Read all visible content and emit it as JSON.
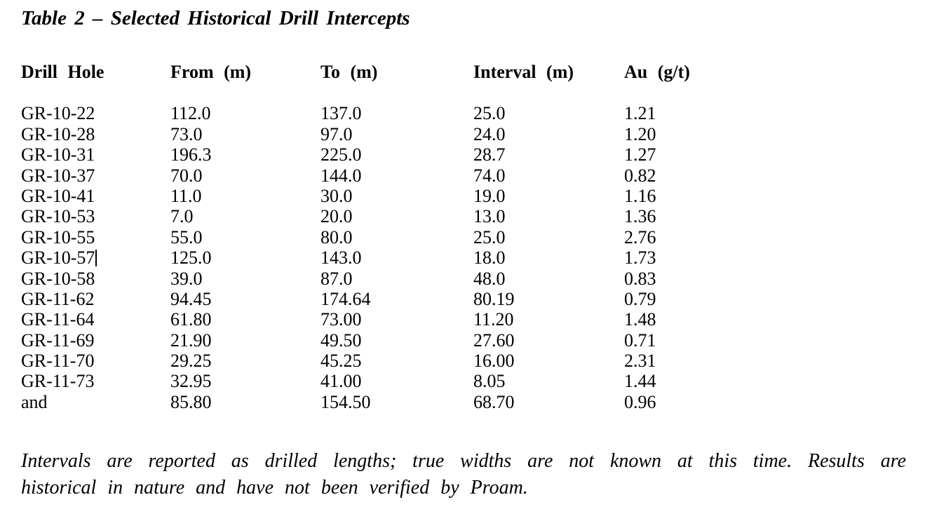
{
  "document": {
    "title": "Table 2 – Selected Historical Drill Intercepts",
    "footnote_lines": {
      "line1": "Intervals are reported as drilled lengths; true widths are not known at this time. Results are",
      "line2": "historical in nature and have not been verified by Proam."
    }
  },
  "table": {
    "headers": [
      "Drill Hole",
      "From (m)",
      "To (m)",
      "Interval (m)",
      "Au (g/t)"
    ],
    "rows": [
      {
        "hole": "GR-10-22",
        "from": "112.0",
        "to": "137.0",
        "interval": "25.0",
        "au": "1.21"
      },
      {
        "hole": "GR-10-28",
        "from": "73.0",
        "to": "97.0",
        "interval": "24.0",
        "au": "1.20"
      },
      {
        "hole": "GR-10-31",
        "from": "196.3",
        "to": "225.0",
        "interval": "28.7",
        "au": "1.27"
      },
      {
        "hole": "GR-10-37",
        "from": "70.0",
        "to": "144.0",
        "interval": "74.0",
        "au": "0.82"
      },
      {
        "hole": "GR-10-41",
        "from": "11.0",
        "to": "30.0",
        "interval": "19.0",
        "au": "1.16"
      },
      {
        "hole": "GR-10-53",
        "from": "7.0",
        "to": "20.0",
        "interval": "13.0",
        "au": "1.36"
      },
      {
        "hole": "GR-10-55",
        "from": "55.0",
        "to": "80.0",
        "interval": "25.0",
        "au": "2.76"
      },
      {
        "hole": "GR-10-57",
        "from": "125.0",
        "to": "143.0",
        "interval": "18.0",
        "au": "1.73"
      },
      {
        "hole": "GR-10-58",
        "from": "39.0",
        "to": "87.0",
        "interval": "48.0",
        "au": "0.83"
      },
      {
        "hole": "GR-11-62",
        "from": "94.45",
        "to": "174.64",
        "interval": "80.19",
        "au": "0.79"
      },
      {
        "hole": "GR-11-64",
        "from": "61.80",
        "to": "73.00",
        "interval": "11.20",
        "au": "1.48"
      },
      {
        "hole": "GR-11-69",
        "from": "21.90",
        "to": "49.50",
        "interval": "27.60",
        "au": "0.71"
      },
      {
        "hole": "GR-11-70",
        "from": "29.25",
        "to": "45.25",
        "interval": "16.00",
        "au": "2.31"
      },
      {
        "hole": "GR-11-73",
        "from": "32.95",
        "to": "41.00",
        "interval": "8.05",
        "au": "1.44"
      },
      {
        "hole": "and",
        "from": "85.80",
        "to": "154.50",
        "interval": "68.70",
        "au": "0.96"
      }
    ]
  },
  "colors": {
    "text": "#000000",
    "background": "#ffffff"
  }
}
